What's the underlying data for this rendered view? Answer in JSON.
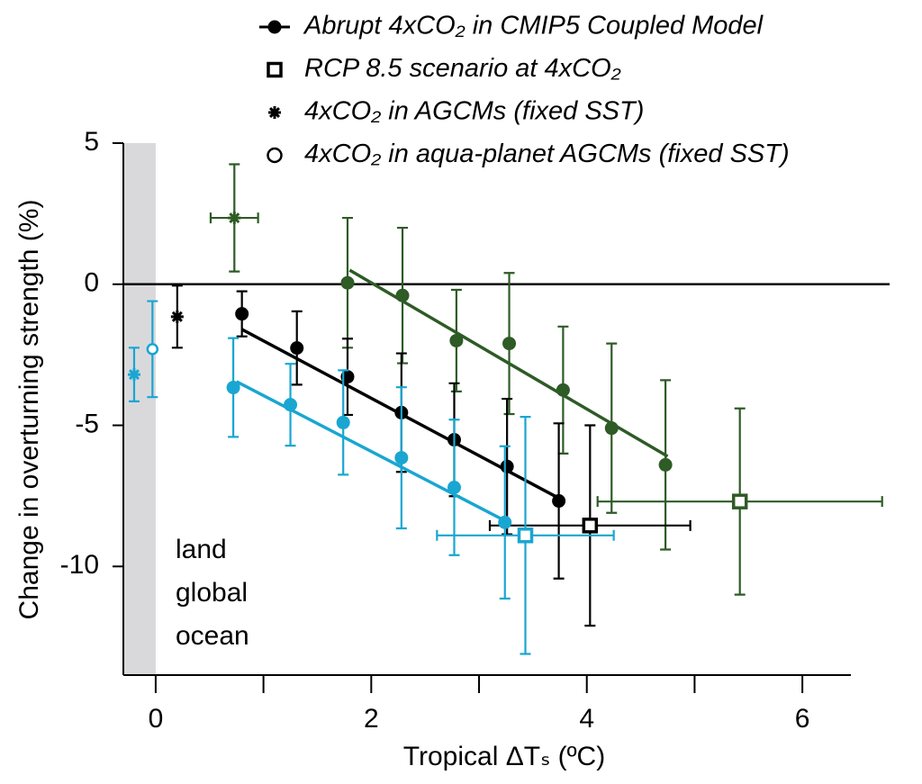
{
  "chart_data": {
    "type": "scatter",
    "xlabel": "Tropical ΔTₛ (ºC)",
    "ylabel": "Change in overturning strength (%)",
    "xlim": [
      -0.3,
      6.45
    ],
    "ylim": [
      -13.85,
      5
    ],
    "xticks": [
      0,
      2,
      4,
      6
    ],
    "xminorticks": [
      1,
      3,
      5
    ],
    "yticks": [
      5,
      0,
      -5,
      -10
    ],
    "shade_x": [
      -0.3,
      0
    ],
    "hline": 0,
    "legend": [
      {
        "label": "Abrupt 4xCO₂ in CMIP5 Coupled Model",
        "marker": "circle"
      },
      {
        "label": "RCP 8.5 scenario at 4xCO₂",
        "marker": "square"
      },
      {
        "label": "4xCO₂  in AGCMs (fixed SST)",
        "marker": "star"
      },
      {
        "label": "4xCO₂  in aqua-planet AGCMs (fixed SST)",
        "marker": "open-circle"
      }
    ],
    "groups": [
      {
        "name": "land",
        "color": "#2e5b26",
        "series": [
          {
            "marker": "circle",
            "x": [
              1.78,
              2.29,
              2.79,
              3.28,
              3.78,
              4.23,
              4.73
            ],
            "values": [
              0.05,
              -0.4,
              -2.0,
              -2.1,
              -3.75,
              -5.1,
              -6.4
            ],
            "yerr": [
              2.3,
              2.4,
              1.8,
              2.5,
              2.25,
              3.0,
              3.0
            ],
            "fit": {
              "x": [
                1.8,
                4.75
              ],
              "values": [
                0.5,
                -6.1
              ]
            }
          },
          {
            "marker": "square",
            "x": [
              5.42
            ],
            "values": [
              -7.7
            ],
            "yerr": [
              3.3
            ],
            "xerr": [
              1.32
            ]
          },
          {
            "marker": "star",
            "x": [
              0.73
            ],
            "values": [
              2.35
            ],
            "yerr": [
              1.9
            ],
            "xerr": [
              0.22
            ]
          }
        ]
      },
      {
        "name": "global",
        "color": "#000000",
        "series": [
          {
            "marker": "circle",
            "x": [
              0.8,
              1.31,
              1.78,
              2.28,
              2.77,
              3.26,
              3.74
            ],
            "values": [
              -1.05,
              -2.26,
              -3.28,
              -4.55,
              -5.51,
              -6.46,
              -7.68
            ],
            "yerr": [
              0.8,
              1.3,
              1.35,
              2.1,
              2.0,
              2.4,
              2.75
            ],
            "fit": {
              "x": [
                0.8,
                3.75
              ],
              "values": [
                -1.6,
                -7.6
              ]
            }
          },
          {
            "marker": "square",
            "x": [
              4.03
            ],
            "values": [
              -8.55
            ],
            "yerr": [
              3.55
            ],
            "xerr": [
              0.93
            ]
          },
          {
            "marker": "star",
            "x": [
              0.2
            ],
            "values": [
              -1.15
            ],
            "yerr": [
              1.1
            ]
          }
        ]
      },
      {
        "name": "ocean",
        "color": "#19a6d1",
        "series": [
          {
            "marker": "circle",
            "x": [
              0.72,
              1.25,
              1.74,
              2.28,
              2.77,
              3.24
            ],
            "values": [
              -3.66,
              -4.27,
              -4.9,
              -6.15,
              -7.2,
              -8.44
            ],
            "yerr": [
              1.75,
              1.45,
              1.85,
              2.5,
              2.4,
              2.7
            ],
            "fit": {
              "x": [
                0.75,
                3.25
              ],
              "values": [
                -3.45,
                -8.4
              ]
            }
          },
          {
            "marker": "square",
            "x": [
              3.43
            ],
            "values": [
              -8.9
            ],
            "yerr": [
              4.2
            ],
            "xerr": [
              0.82
            ]
          },
          {
            "marker": "star",
            "x": [
              -0.2
            ],
            "values": [
              -3.2
            ],
            "yerr": [
              0.95
            ]
          },
          {
            "marker": "open-circle",
            "x": [
              -0.03
            ],
            "values": [
              -2.3
            ],
            "yerr": [
              1.7
            ]
          }
        ]
      }
    ]
  }
}
